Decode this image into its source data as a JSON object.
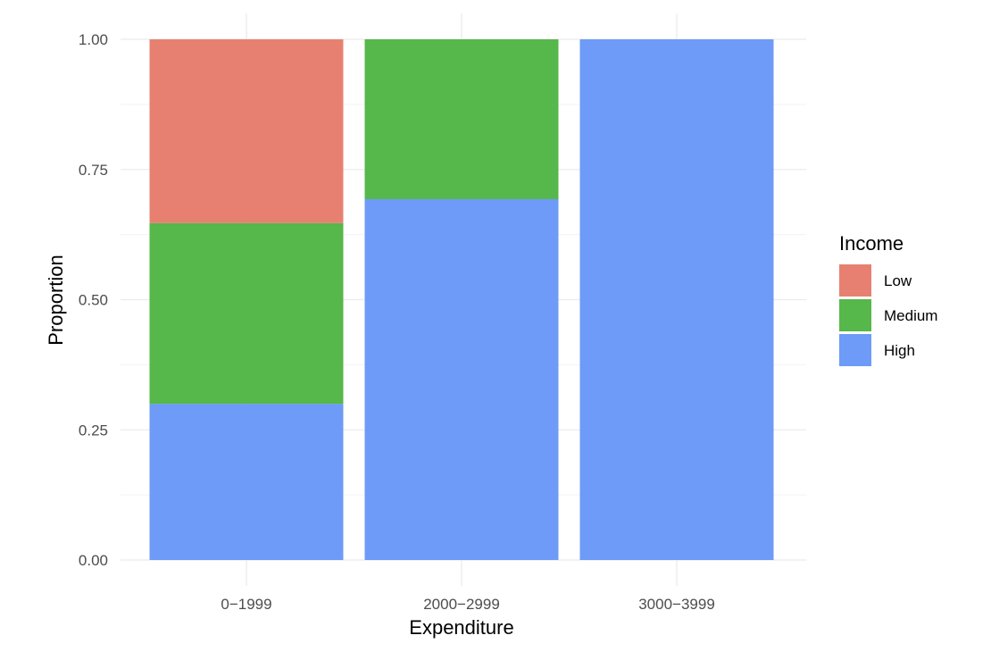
{
  "chart_data": {
    "type": "bar",
    "stacked": true,
    "categories": [
      "0−1999",
      "2000−2999",
      "3000−3999"
    ],
    "series": [
      {
        "name": "High",
        "values": [
          0.3,
          0.693,
          1.0
        ],
        "color": "#6d9bf7"
      },
      {
        "name": "Medium",
        "values": [
          0.347,
          0.307,
          0.0
        ],
        "color": "#56b74a"
      },
      {
        "name": "Low",
        "values": [
          0.353,
          0.0,
          0.0
        ],
        "color": "#e88072"
      }
    ],
    "xlabel": "Expenditure",
    "ylabel": "Proportion",
    "ylim": [
      0,
      1
    ],
    "yticks": [
      "0.00",
      "0.25",
      "0.50",
      "0.75",
      "1.00"
    ],
    "grid": true,
    "legend": {
      "title": "Income",
      "position": "right",
      "items": [
        {
          "label": "Low",
          "color": "#e88072"
        },
        {
          "label": "Medium",
          "color": "#56b74a"
        },
        {
          "label": "High",
          "color": "#6d9bf7"
        }
      ]
    }
  }
}
